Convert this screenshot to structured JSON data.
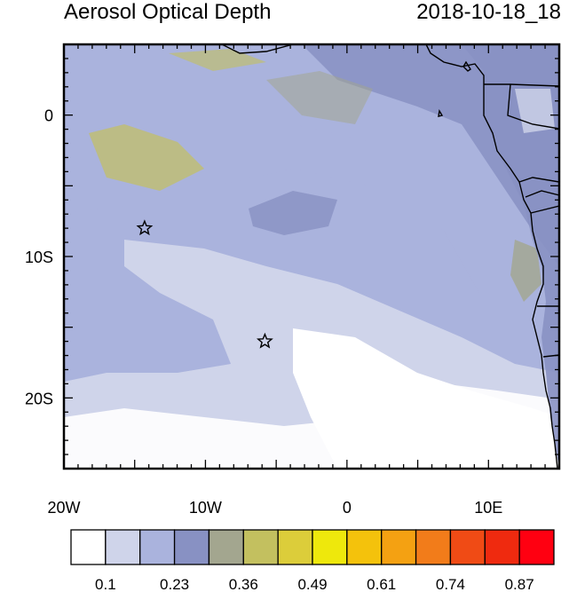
{
  "title": "Aerosol Optical Depth",
  "datetime": "2018-10-18_18",
  "map": {
    "lon_range": [
      -20,
      15
    ],
    "lat_range": [
      -25,
      5
    ],
    "x_ticks": [
      {
        "lon": -20,
        "label": "20W"
      },
      {
        "lon": -10,
        "label": "10W"
      },
      {
        "lon": 0,
        "label": "0"
      },
      {
        "lon": 10,
        "label": "10E"
      }
    ],
    "y_ticks": [
      {
        "lat": 0,
        "label": "0"
      },
      {
        "lat": -10,
        "label": "10S"
      },
      {
        "lat": -20,
        "label": "20S"
      }
    ],
    "markers": [
      {
        "name": "star-marker-1",
        "lon": -14.3,
        "lat": -8.0,
        "symbol": "star"
      },
      {
        "name": "star-marker-2",
        "lon": -5.8,
        "lat": -16.0,
        "symbol": "star"
      }
    ]
  },
  "colorbar": {
    "colors": [
      "#ffffff",
      "#cfd4ea",
      "#aab3dd",
      "#8891c3",
      "#a3a68f",
      "#c3c05f",
      "#dccd3a",
      "#eee80c",
      "#f4c20c",
      "#f4a112",
      "#f27c1a",
      "#f04b15",
      "#ef2a0f",
      "#ff0011"
    ],
    "labels": [
      "0.1",
      "0.23",
      "0.36",
      "0.49",
      "0.61",
      "0.74",
      "0.87"
    ]
  }
}
